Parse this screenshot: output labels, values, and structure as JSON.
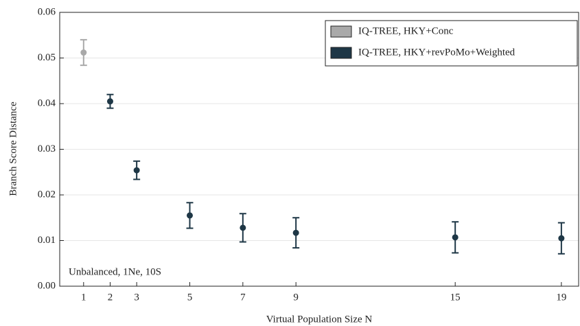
{
  "chart_data": {
    "type": "errorbar",
    "xlabel": "Virtual Population Size N",
    "ylabel": "Branch Score Distance",
    "annotation": "Unbalanced, 1Ne, 10S",
    "xlim": [
      0.1,
      19.65
    ],
    "xticks": [
      1,
      2,
      3,
      5,
      7,
      9,
      15,
      19
    ],
    "ylim": [
      0,
      0.06
    ],
    "yticks": [
      {
        "value": 0,
        "label": "0.00"
      },
      0.01,
      0.02,
      0.03,
      0.04,
      0.05,
      0.06
    ],
    "grid": true,
    "legend": "upper right",
    "series": [
      {
        "name": "IQ-TREE, HKY+Conc",
        "color": "#a9a9a9",
        "x": [
          1
        ],
        "values": [
          0.0512
        ],
        "errors": [
          0.0028
        ]
      },
      {
        "name": "IQ-TREE, HKY+revPoMo+Weighted",
        "color": "#1e3746",
        "x": [
          2,
          3,
          5,
          7,
          9,
          15,
          19
        ],
        "values": [
          0.0405,
          0.0254,
          0.0155,
          0.0128,
          0.0117,
          0.0107,
          0.0105
        ],
        "errors": [
          0.0015,
          0.002,
          0.0028,
          0.0031,
          0.0033,
          0.0034,
          0.0034
        ]
      }
    ]
  }
}
